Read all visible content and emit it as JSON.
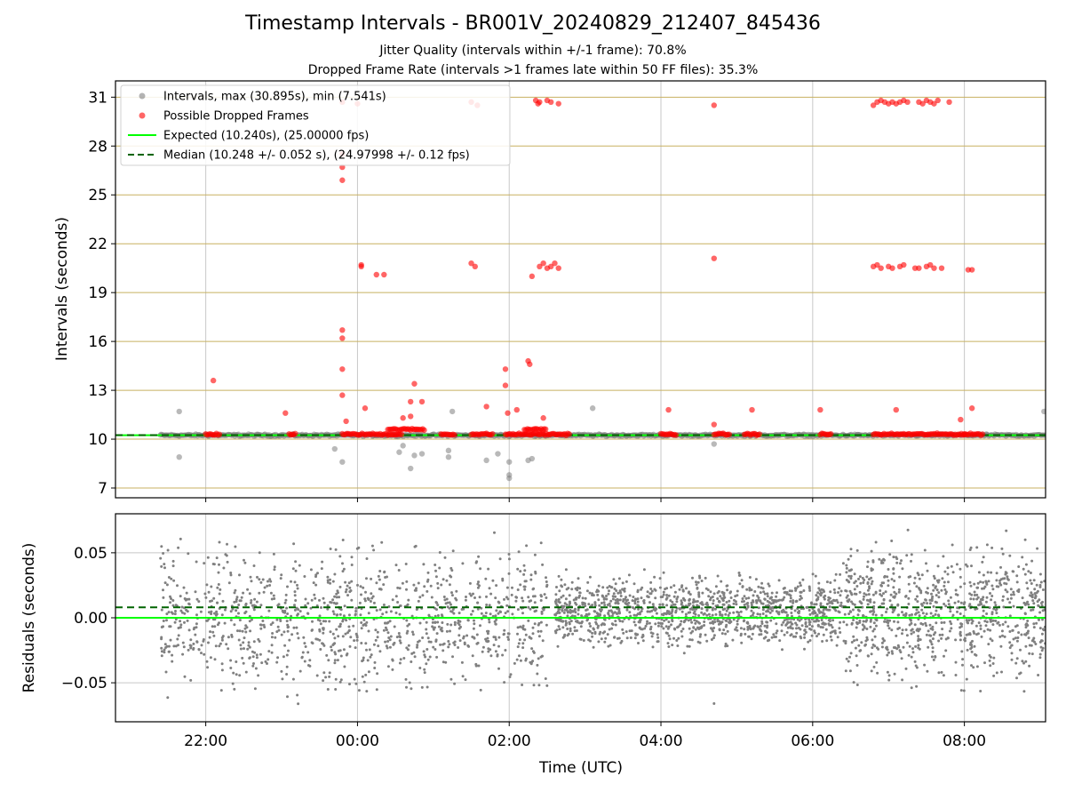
{
  "title": "Timestamp Intervals - BR001V_20240829_212407_845436",
  "subtitle_1": "Jitter Quality (intervals within +/-1 frame): 70.8%",
  "subtitle_2": "Dropped Frame Rate (intervals >1 frames late within 50 FF files): 35.3%",
  "colors": {
    "intervals": "#808080",
    "dropped": "#ff0000",
    "expected": "#00ff00",
    "median": "#006400",
    "hgrid": "#c8b060",
    "grid": "#c8c8c8"
  },
  "chart_data": [
    {
      "type": "scatter",
      "ylabel": "Intervals (seconds)",
      "xlabel": "",
      "x_unit": "hours since 00:00 UTC (29→30 Aug 2024)",
      "xlim": [
        -3.19,
        9.07
      ],
      "ylim": [
        6.4,
        32.0
      ],
      "yticks": [
        7,
        10,
        13,
        16,
        19,
        22,
        25,
        28,
        31
      ],
      "xticks": [
        {
          "value": -2,
          "label": "22:00"
        },
        {
          "value": 0,
          "label": "00:00"
        },
        {
          "value": 2,
          "label": "02:00"
        },
        {
          "value": 4,
          "label": "04:00"
        },
        {
          "value": 6,
          "label": "06:00"
        },
        {
          "value": 8,
          "label": "08:00"
        }
      ],
      "show_xtick_labels": false,
      "grid": true,
      "legend_position": "top-left",
      "legend": [
        {
          "label": "Intervals, max (30.895s), min (7.541s)",
          "marker": "dot",
          "color": "#808080"
        },
        {
          "label": "Possible Dropped Frames",
          "marker": "dot",
          "color": "#ff0000"
        },
        {
          "label": "Expected (10.240s), (25.00000 fps)",
          "marker": "line",
          "color": "#00ff00"
        },
        {
          "label": "Median (10.248 +/- 0.052 s), (24.97998 +/- 0.12 fps)",
          "marker": "dashed",
          "color": "#006400"
        }
      ],
      "hlines": [
        {
          "name": "Expected",
          "y": 10.24,
          "style": "solid",
          "color": "#00ff00"
        },
        {
          "name": "Median",
          "y": 10.248,
          "style": "dashed",
          "color": "#006400"
        }
      ],
      "series": [
        {
          "name": "Intervals",
          "kind": "band",
          "x_range": [
            -2.6,
            9.07
          ],
          "y_center": 10.24,
          "y_spread": 0.1,
          "outliers": [
            [
              -2.35,
              11.7
            ],
            [
              -2.35,
              8.9
            ],
            [
              -0.2,
              8.6
            ],
            [
              -0.3,
              9.4
            ],
            [
              0.55,
              9.2
            ],
            [
              0.7,
              8.2
            ],
            [
              0.75,
              9.0
            ],
            [
              0.85,
              9.1
            ],
            [
              0.6,
              9.6
            ],
            [
              1.2,
              9.3
            ],
            [
              1.2,
              8.9
            ],
            [
              1.25,
              11.7
            ],
            [
              1.7,
              8.7
            ],
            [
              1.85,
              9.1
            ],
            [
              2.0,
              7.6
            ],
            [
              2.0,
              7.8
            ],
            [
              2.0,
              8.6
            ],
            [
              2.25,
              8.7
            ],
            [
              2.3,
              8.8
            ],
            [
              3.1,
              11.9
            ],
            [
              4.7,
              9.7
            ],
            [
              9.05,
              11.7
            ]
          ]
        },
        {
          "name": "Possible Dropped Frames",
          "kind": "points",
          "clusters": [
            {
              "x_from": -2.0,
              "x_to": -1.8,
              "y": 10.3
            },
            {
              "x_from": -0.9,
              "x_to": -0.8,
              "y": 10.3
            },
            {
              "x_from": -0.2,
              "x_to": 0.6,
              "y": 10.3
            },
            {
              "x_from": 0.4,
              "x_to": 0.9,
              "y": 10.6
            },
            {
              "x_from": 1.1,
              "x_to": 1.3,
              "y": 10.3
            },
            {
              "x_from": 1.5,
              "x_to": 1.8,
              "y": 10.3
            },
            {
              "x_from": 1.95,
              "x_to": 2.8,
              "y": 10.3
            },
            {
              "x_from": 2.2,
              "x_to": 2.5,
              "y": 10.6
            },
            {
              "x_from": 4.0,
              "x_to": 4.2,
              "y": 10.3
            },
            {
              "x_from": 4.7,
              "x_to": 4.9,
              "y": 10.3
            },
            {
              "x_from": 5.1,
              "x_to": 5.3,
              "y": 10.3
            },
            {
              "x_from": 6.1,
              "x_to": 6.25,
              "y": 10.3
            },
            {
              "x_from": 6.8,
              "x_to": 8.0,
              "y": 10.3
            },
            {
              "x_from": 8.0,
              "x_to": 8.25,
              "y": 10.3
            }
          ],
          "points": [
            [
              -1.9,
              13.6
            ],
            [
              -0.95,
              11.6
            ],
            [
              -0.2,
              16.7
            ],
            [
              -0.2,
              16.2
            ],
            [
              -0.2,
              14.3
            ],
            [
              -0.2,
              12.7
            ],
            [
              -0.15,
              11.1
            ],
            [
              -0.2,
              25.9
            ],
            [
              -0.2,
              26.7
            ],
            [
              -0.2,
              27.5
            ],
            [
              -0.2,
              30.7
            ],
            [
              0.0,
              30.6
            ],
            [
              0.05,
              20.6
            ],
            [
              0.05,
              20.7
            ],
            [
              0.1,
              11.9
            ],
            [
              0.25,
              20.1
            ],
            [
              0.35,
              20.1
            ],
            [
              0.7,
              12.3
            ],
            [
              0.75,
              13.4
            ],
            [
              0.7,
              11.4
            ],
            [
              0.85,
              12.3
            ],
            [
              0.6,
              11.3
            ],
            [
              1.5,
              30.7
            ],
            [
              1.58,
              30.5
            ],
            [
              1.5,
              20.8
            ],
            [
              1.55,
              20.6
            ],
            [
              1.7,
              12.0
            ],
            [
              1.95,
              14.3
            ],
            [
              1.95,
              13.3
            ],
            [
              1.98,
              11.6
            ],
            [
              2.1,
              11.8
            ],
            [
              2.25,
              14.8
            ],
            [
              2.27,
              14.6
            ],
            [
              2.3,
              20.0
            ],
            [
              2.35,
              30.8
            ],
            [
              2.38,
              30.6
            ],
            [
              2.4,
              30.7
            ],
            [
              2.5,
              30.8
            ],
            [
              2.55,
              30.7
            ],
            [
              2.65,
              30.6
            ],
            [
              2.4,
              20.6
            ],
            [
              2.45,
              20.8
            ],
            [
              2.5,
              20.5
            ],
            [
              2.55,
              20.6
            ],
            [
              2.6,
              20.8
            ],
            [
              2.65,
              20.5
            ],
            [
              2.45,
              11.3
            ],
            [
              4.1,
              11.8
            ],
            [
              4.7,
              21.1
            ],
            [
              4.7,
              30.5
            ],
            [
              4.7,
              10.9
            ],
            [
              5.2,
              11.8
            ],
            [
              6.1,
              11.8
            ],
            [
              6.8,
              30.5
            ],
            [
              6.85,
              30.7
            ],
            [
              6.9,
              30.8
            ],
            [
              6.95,
              30.7
            ],
            [
              7.0,
              30.6
            ],
            [
              7.05,
              30.7
            ],
            [
              7.1,
              30.6
            ],
            [
              7.15,
              30.7
            ],
            [
              7.2,
              30.8
            ],
            [
              7.25,
              30.7
            ],
            [
              7.4,
              30.7
            ],
            [
              7.45,
              30.6
            ],
            [
              7.5,
              30.8
            ],
            [
              7.55,
              30.7
            ],
            [
              7.6,
              30.6
            ],
            [
              7.65,
              30.8
            ],
            [
              7.8,
              30.7
            ],
            [
              6.8,
              20.6
            ],
            [
              6.85,
              20.7
            ],
            [
              6.9,
              20.5
            ],
            [
              7.0,
              20.6
            ],
            [
              7.05,
              20.5
            ],
            [
              7.15,
              20.6
            ],
            [
              7.2,
              20.7
            ],
            [
              7.35,
              20.5
            ],
            [
              7.4,
              20.5
            ],
            [
              7.5,
              20.6
            ],
            [
              7.55,
              20.7
            ],
            [
              7.6,
              20.5
            ],
            [
              7.7,
              20.5
            ],
            [
              8.05,
              20.4
            ],
            [
              8.1,
              20.4
            ],
            [
              7.1,
              11.8
            ],
            [
              8.1,
              11.9
            ],
            [
              7.95,
              11.2
            ]
          ]
        }
      ]
    },
    {
      "type": "scatter",
      "ylabel": "Residuals (seconds)",
      "xlabel": "Time (UTC)",
      "x_unit": "hours since 00:00 UTC (29→30 Aug 2024)",
      "xlim": [
        -3.19,
        9.07
      ],
      "ylim": [
        -0.08,
        0.08
      ],
      "yticks": [
        {
          "value": 0.05,
          "label": "0.05"
        },
        {
          "value": 0.0,
          "label": "0.00"
        },
        {
          "value": -0.05,
          "label": "−0.05"
        }
      ],
      "xticks": [
        {
          "value": -2,
          "label": "22:00"
        },
        {
          "value": 0,
          "label": "00:00"
        },
        {
          "value": 2,
          "label": "02:00"
        },
        {
          "value": 4,
          "label": "04:00"
        },
        {
          "value": 6,
          "label": "06:00"
        },
        {
          "value": 8,
          "label": "08:00"
        }
      ],
      "grid": true,
      "hlines": [
        {
          "name": "Expected",
          "y": 0.0,
          "style": "solid",
          "color": "#00ff00"
        },
        {
          "name": "Median",
          "y": 0.008,
          "style": "dashed",
          "color": "#006400"
        }
      ],
      "series": [
        {
          "name": "Residuals",
          "kind": "scatter-cloud",
          "x_range": [
            -2.6,
            9.07
          ],
          "segments": [
            {
              "x_from": -2.6,
              "x_to": 2.5,
              "y_center": 0.0,
              "y_spread": 0.08,
              "count": 1150
            },
            {
              "x_from": 2.6,
              "x_to": 6.4,
              "y_center": 0.005,
              "y_spread": 0.04,
              "count": 1250
            },
            {
              "x_from": 6.4,
              "x_to": 9.07,
              "y_center": 0.005,
              "y_spread": 0.08,
              "count": 850
            }
          ],
          "outliers": [
            [
              4.7,
              -0.066
            ]
          ]
        }
      ]
    }
  ]
}
